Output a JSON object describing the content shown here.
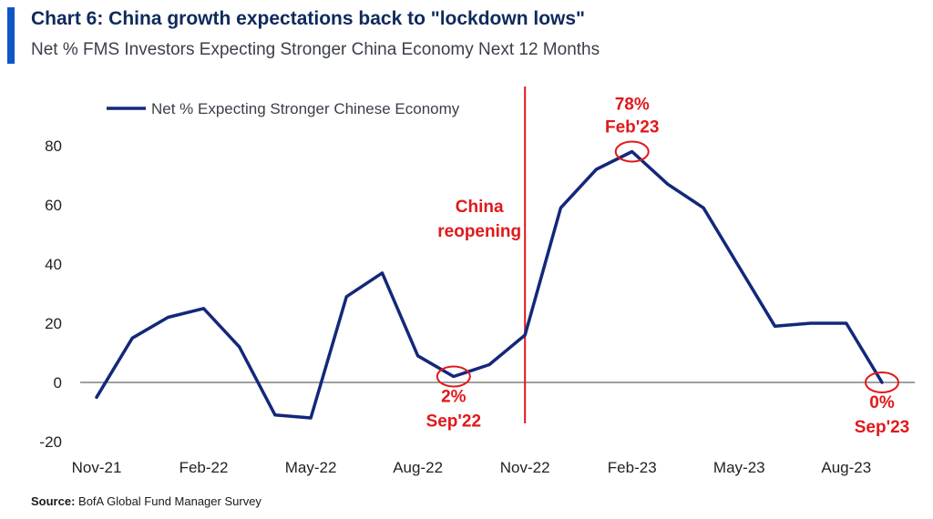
{
  "header": {
    "title": "Chart 6: China growth expectations back to \"lockdown lows\"",
    "subtitle": "Net % FMS Investors Expecting Stronger China Economy Next 12 Months"
  },
  "footer": {
    "source_label": "Source:",
    "source_text": "BofA Global Fund Manager Survey"
  },
  "colors": {
    "line": "#13287a",
    "annotation": "#e0191b",
    "accent_bar": "#0e55c8"
  },
  "chart_data": {
    "type": "line",
    "xlabel": "",
    "ylabel": "",
    "ylim": [
      -20,
      80
    ],
    "yticks": [
      -20,
      0,
      20,
      40,
      60,
      80
    ],
    "xtick_labels": [
      "Nov-21",
      "Feb-22",
      "May-22",
      "Aug-22",
      "Nov-22",
      "Feb-23",
      "May-23",
      "Aug-23"
    ],
    "x": [
      "Nov-21",
      "Dec-21",
      "Jan-22",
      "Feb-22",
      "Mar-22",
      "Apr-22",
      "May-22",
      "Jun-22",
      "Jul-22",
      "Aug-22",
      "Sep-22",
      "Oct-22",
      "Nov-22",
      "Dec-22",
      "Jan-23",
      "Feb-23",
      "Mar-23",
      "Apr-23",
      "May-23",
      "Jun-23",
      "Jul-23",
      "Aug-23",
      "Sep-23"
    ],
    "series": [
      {
        "name": "Net % Expecting Stronger Chinese Economy",
        "values": [
          -5,
          15,
          22,
          25,
          12,
          -11,
          -12,
          29,
          37,
          9,
          2,
          6,
          16,
          59,
          72,
          78,
          67,
          59,
          39,
          19,
          20,
          20,
          0
        ]
      }
    ],
    "legend_position": "top-left",
    "grid": false,
    "reference_line": {
      "at": "Nov-22",
      "offset": 0,
      "label_lines": [
        "China",
        "reopening"
      ]
    },
    "annotations": [
      {
        "at": "Feb-23",
        "value": 78,
        "lines": [
          "78%",
          "Feb'23"
        ],
        "placement": "above"
      },
      {
        "at": "Sep-22",
        "value": 2,
        "lines": [
          "2%",
          "Sep'22"
        ],
        "placement": "below"
      },
      {
        "at": "Sep-23",
        "value": 0,
        "lines": [
          "0%",
          "Sep'23"
        ],
        "placement": "below"
      }
    ]
  }
}
